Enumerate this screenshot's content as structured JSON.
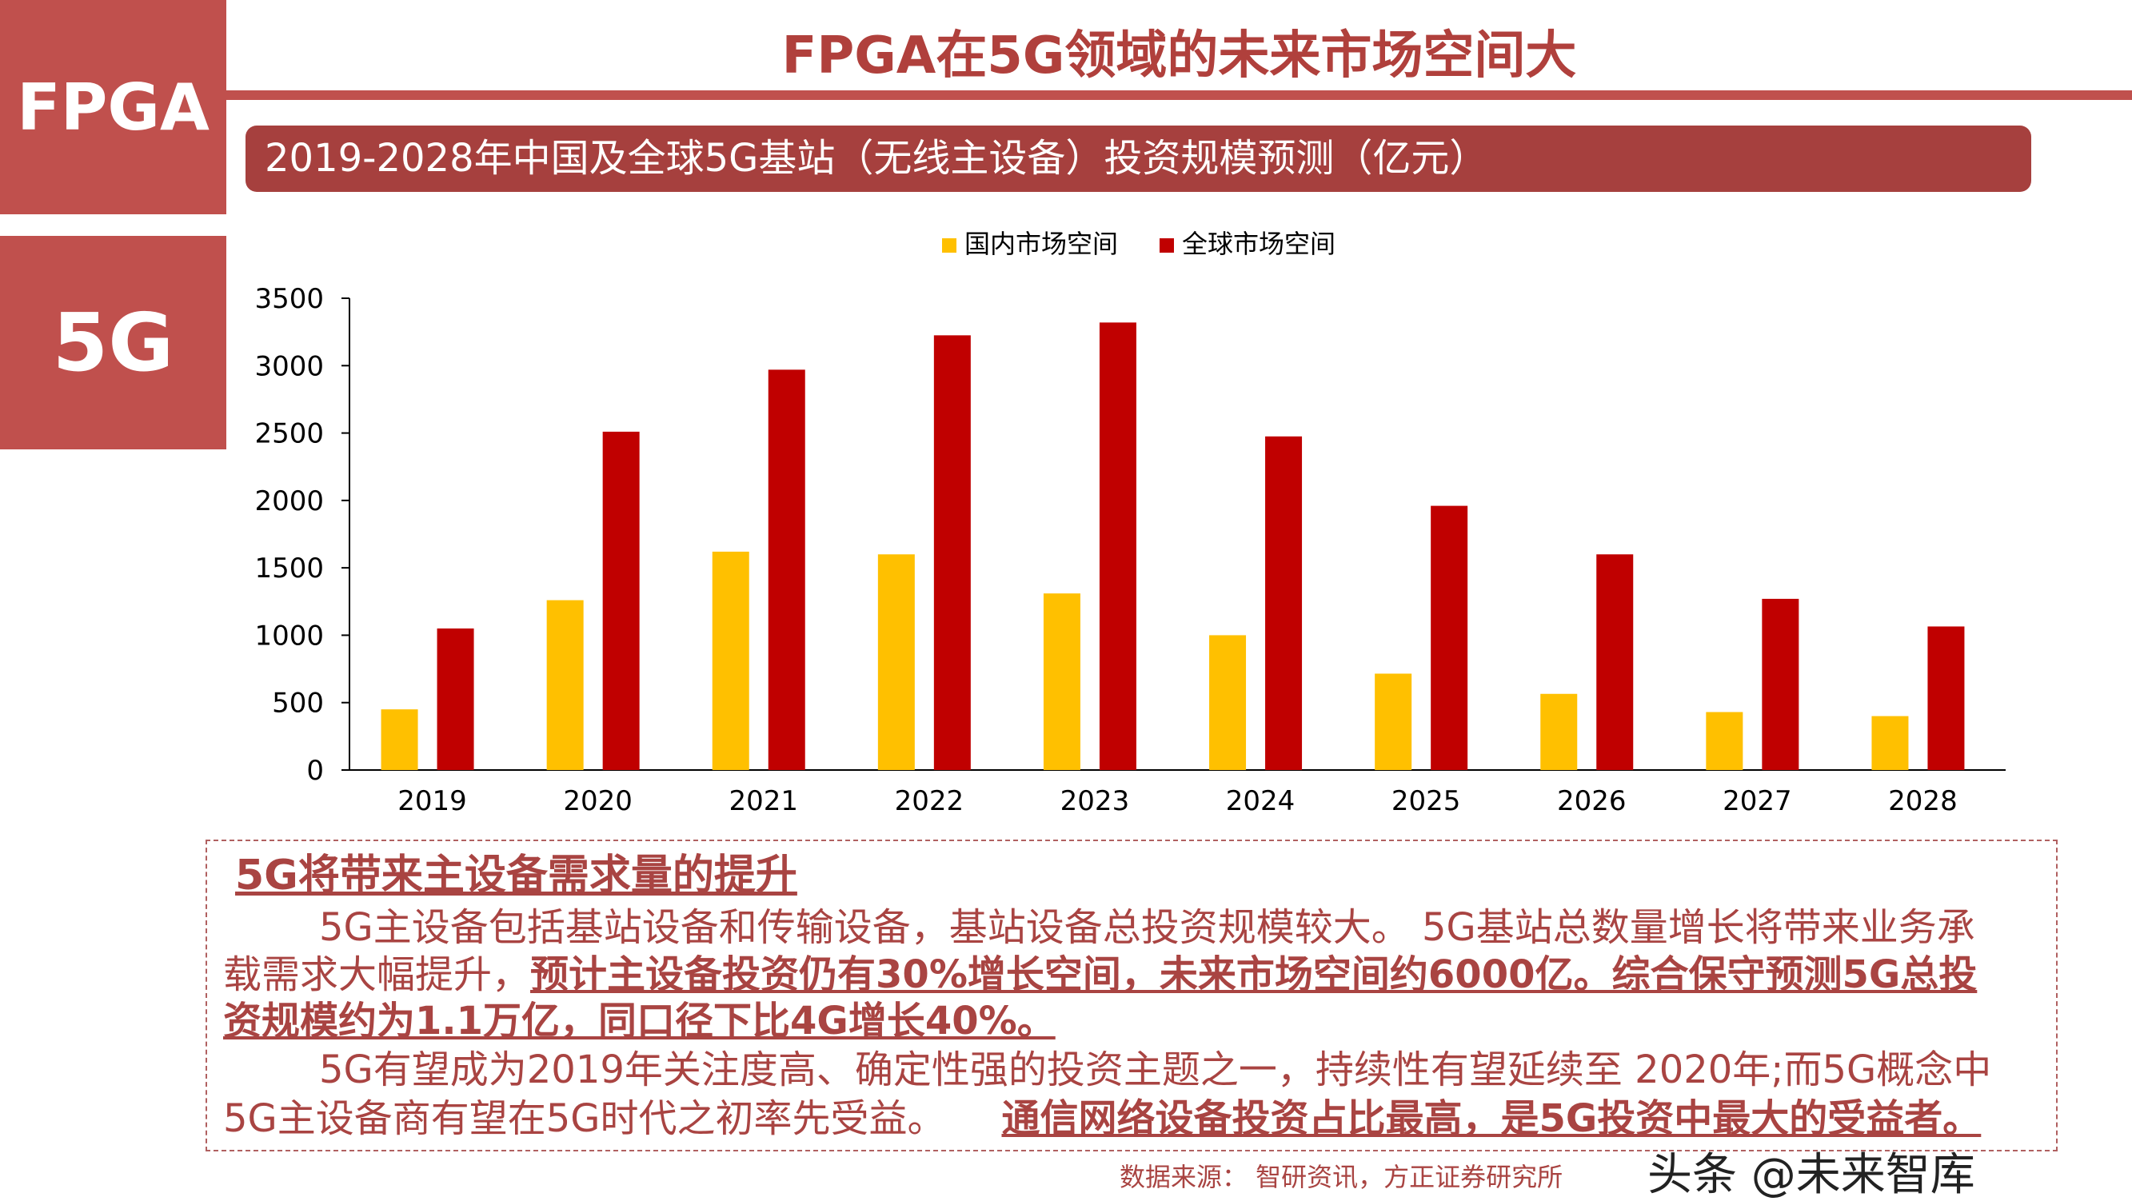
{
  "side": {
    "top": "FPGA",
    "bottom": "5G"
  },
  "title": "FPGA在5G领域的未来市场空间大",
  "subtitle": "2019-2028年中国及全球5G基站（无线主设备）投资规模预测（亿元）",
  "colors": {
    "domestic": "#ffc000",
    "global": "#c00000",
    "accent": "#c0504d",
    "text": "#a94442"
  },
  "chart_data": {
    "type": "bar",
    "title": "2019-2028年中国及全球5G基站（无线主设备）投资规模预测（亿元）",
    "categories": [
      "2019",
      "2020",
      "2021",
      "2022",
      "2023",
      "2024",
      "2025",
      "2026",
      "2027",
      "2028"
    ],
    "series": [
      {
        "name": "国内市场空间",
        "color": "#ffc000",
        "values": [
          450,
          1260,
          1620,
          1600,
          1310,
          1000,
          715,
          565,
          430,
          400
        ]
      },
      {
        "name": "全球市场空间",
        "color": "#c00000",
        "values": [
          1050,
          2510,
          2970,
          3225,
          3320,
          2475,
          1960,
          1600,
          1270,
          1065
        ]
      }
    ],
    "ylim": [
      0,
      3500
    ],
    "yticks": [
      0,
      500,
      1000,
      1500,
      2000,
      2500,
      3000,
      3500
    ],
    "legend": "top-center",
    "grid": false
  },
  "text": {
    "heading": "5G将带来主设备需求量的提升",
    "l2": "5G主设备包括基站设备和传输设备，基站设备总投资规模较大。 5G基站总数量增长将带来业务承",
    "l3a": "载需求大幅提升，",
    "l3b": "预计主设备投资仍有30%增长空间，未来市场空间约6000亿。综合保守预测5G总投",
    "l4": "资规模约为1.1万亿，同口径下比4G增长40%。",
    "l5": "5G有望成为2019年关注度高、确定性强的投资主题之一，持续性有望延续至 2020年;而5G概念中",
    "l6a": "5G主设备商有望在5G时代之初率先受益。",
    "l6b": "通信网络设备投资占比最高，是5G投资中最大的受益者。"
  },
  "source": "数据来源： 智研资讯，方正证券研究所",
  "watermark": "头条 @未来智库"
}
